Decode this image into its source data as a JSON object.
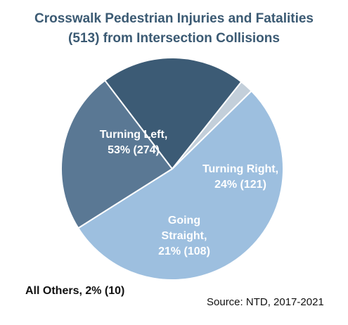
{
  "title": {
    "line1": "Crosswalk Pedestrian Injuries and Fatalities",
    "line2": "(513) from Intersection Collisions"
  },
  "source": "Source: NTD, 2017-2021",
  "chart_data": {
    "type": "pie",
    "title": "Crosswalk Pedestrian Injuries and Fatalities (513) from Intersection Collisions",
    "slices": [
      {
        "label": "Turning Left",
        "percent": 53,
        "count": 274,
        "color": "#9dbfdf",
        "label_lines": [
          "Turning Left,",
          "53% (274)"
        ],
        "label_color": "#ffffff"
      },
      {
        "label": "Turning Right",
        "percent": 24,
        "count": 121,
        "color": "#5a7894",
        "label_lines": [
          "Turning Right,",
          "24% (121)"
        ],
        "label_color": "#ffffff"
      },
      {
        "label": "Going Straight",
        "percent": 21,
        "count": 108,
        "color": "#3c5b75",
        "label_lines": [
          "Going",
          "Straight,",
          "21% (108)"
        ],
        "label_color": "#ffffff"
      },
      {
        "label": "All Others",
        "percent": 2,
        "count": 10,
        "color": "#c3cfda",
        "label_lines": [
          "All Others, 2% (10)"
        ],
        "label_color": "#111111"
      }
    ]
  }
}
